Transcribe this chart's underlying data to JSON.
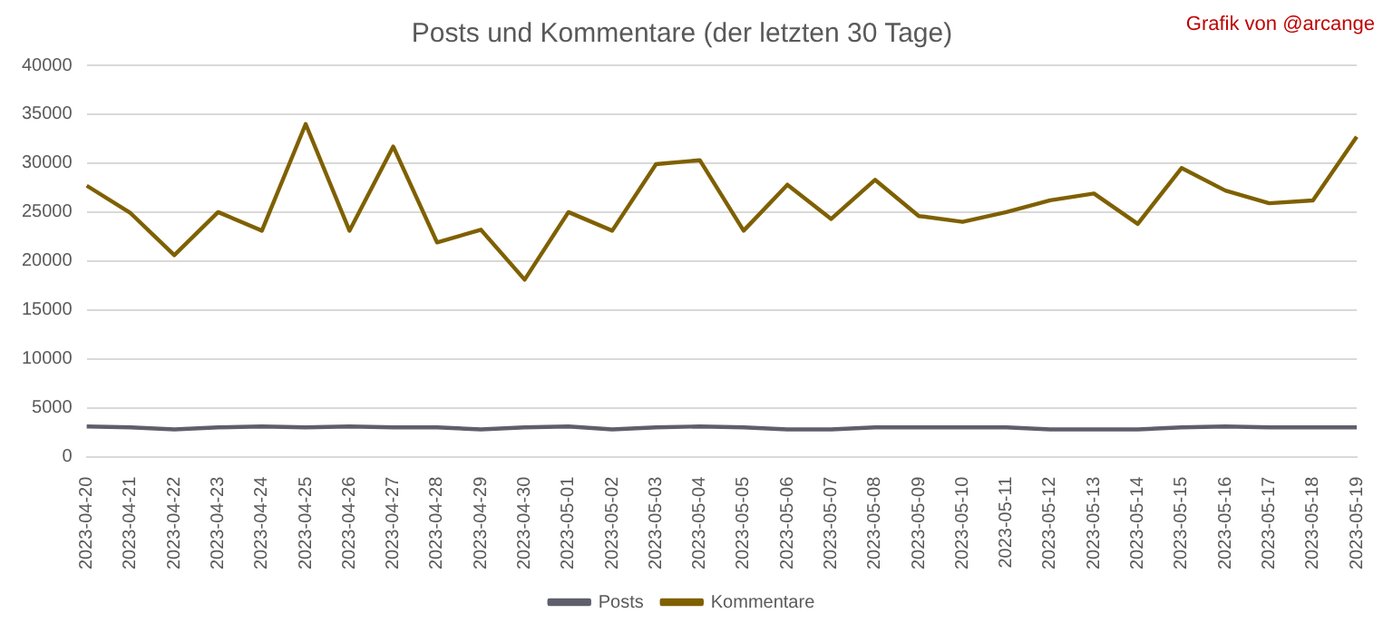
{
  "chart_data": {
    "type": "line",
    "title": "Posts und Kommentare (der letzten 30 Tage)",
    "annotations": [
      "Grafik von @arcange"
    ],
    "categories": [
      "2023-04-20",
      "2023-04-21",
      "2023-04-22",
      "2023-04-23",
      "2023-04-24",
      "2023-04-25",
      "2023-04-26",
      "2023-04-27",
      "2023-04-28",
      "2023-04-29",
      "2023-04-30",
      "2023-05-01",
      "2023-05-02",
      "2023-05-03",
      "2023-05-04",
      "2023-05-05",
      "2023-05-06",
      "2023-05-07",
      "2023-05-08",
      "2023-05-09",
      "2023-05-10",
      "2023-05-11",
      "2023-05-12",
      "2023-05-13",
      "2023-05-14",
      "2023-05-15",
      "2023-05-16",
      "2023-05-17",
      "2023-05-18",
      "2023-05-19"
    ],
    "series": [
      {
        "name": "Posts",
        "color": "#5f5f6b",
        "values": [
          3100,
          3000,
          2800,
          3000,
          3100,
          3000,
          3100,
          3000,
          3000,
          2800,
          3000,
          3100,
          2800,
          3000,
          3100,
          3000,
          2800,
          2800,
          3000,
          3000,
          3000,
          3000,
          2800,
          2800,
          2800,
          3000,
          3100,
          3000,
          3000,
          3000
        ]
      },
      {
        "name": "Kommentare",
        "color": "#7f6000",
        "values": [
          27700,
          24900,
          20600,
          25000,
          23100,
          34000,
          23100,
          31700,
          21900,
          23200,
          18100,
          25000,
          23100,
          29900,
          30300,
          23100,
          27800,
          24300,
          28300,
          24600,
          24000,
          25000,
          26200,
          26900,
          23800,
          29500,
          27200,
          25900,
          26200,
          32700
        ]
      }
    ],
    "ylim": [
      0,
      40000
    ],
    "yticks": [
      0,
      5000,
      10000,
      15000,
      20000,
      25000,
      30000,
      35000,
      40000
    ],
    "grid": "y",
    "legend": "bottom",
    "marker": "none",
    "line_style": "solid"
  }
}
